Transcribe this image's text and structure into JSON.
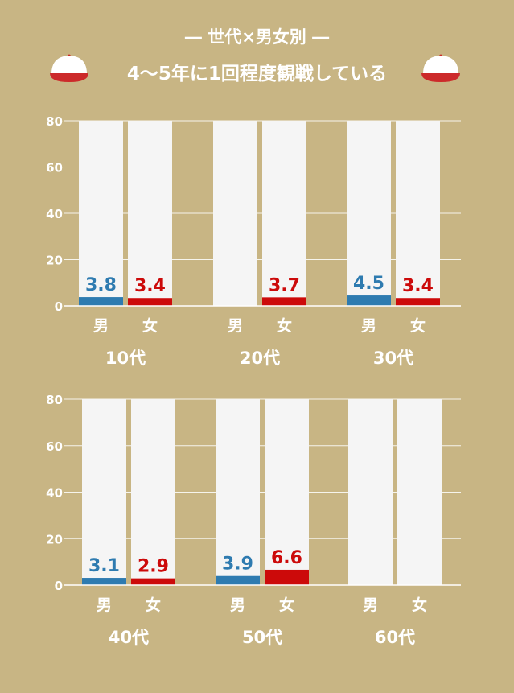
{
  "title": {
    "subtitle": "― 世代×男女別 ―",
    "main": "4〜5年に1回程度観戦している"
  },
  "colors": {
    "background": "#c8b584",
    "male": "#2e7bb0",
    "female": "#cc0a0a",
    "bar_background": "#f5f5f5",
    "cap_red": "#cc2a2a"
  },
  "icons": [
    "baseball-cap-icon",
    "baseball-cap-icon"
  ],
  "chart_data": [
    {
      "type": "bar",
      "ylim": [
        0,
        80
      ],
      "yticks": [
        0,
        20,
        40,
        60,
        80
      ],
      "groups": [
        {
          "name": "10代",
          "categories": [
            "男",
            "女"
          ],
          "values": [
            3.8,
            3.4
          ],
          "labels": [
            "3.8",
            "3.4"
          ]
        },
        {
          "name": "20代",
          "categories": [
            "男",
            "女"
          ],
          "values": [
            0,
            3.7
          ],
          "labels": [
            "",
            "3.7"
          ]
        },
        {
          "name": "30代",
          "categories": [
            "男",
            "女"
          ],
          "values": [
            4.5,
            3.4
          ],
          "labels": [
            "4.5",
            "3.4"
          ]
        }
      ]
    },
    {
      "type": "bar",
      "ylim": [
        0,
        80
      ],
      "yticks": [
        0,
        20,
        40,
        60,
        80
      ],
      "groups": [
        {
          "name": "40代",
          "categories": [
            "男",
            "女"
          ],
          "values": [
            3.1,
            2.9
          ],
          "labels": [
            "3.1",
            "2.9"
          ]
        },
        {
          "name": "50代",
          "categories": [
            "男",
            "女"
          ],
          "values": [
            3.9,
            6.6
          ],
          "labels": [
            "3.9",
            "6.6"
          ]
        },
        {
          "name": "60代",
          "categories": [
            "男",
            "女"
          ],
          "values": [
            0,
            0
          ],
          "labels": [
            "",
            ""
          ]
        }
      ]
    }
  ]
}
